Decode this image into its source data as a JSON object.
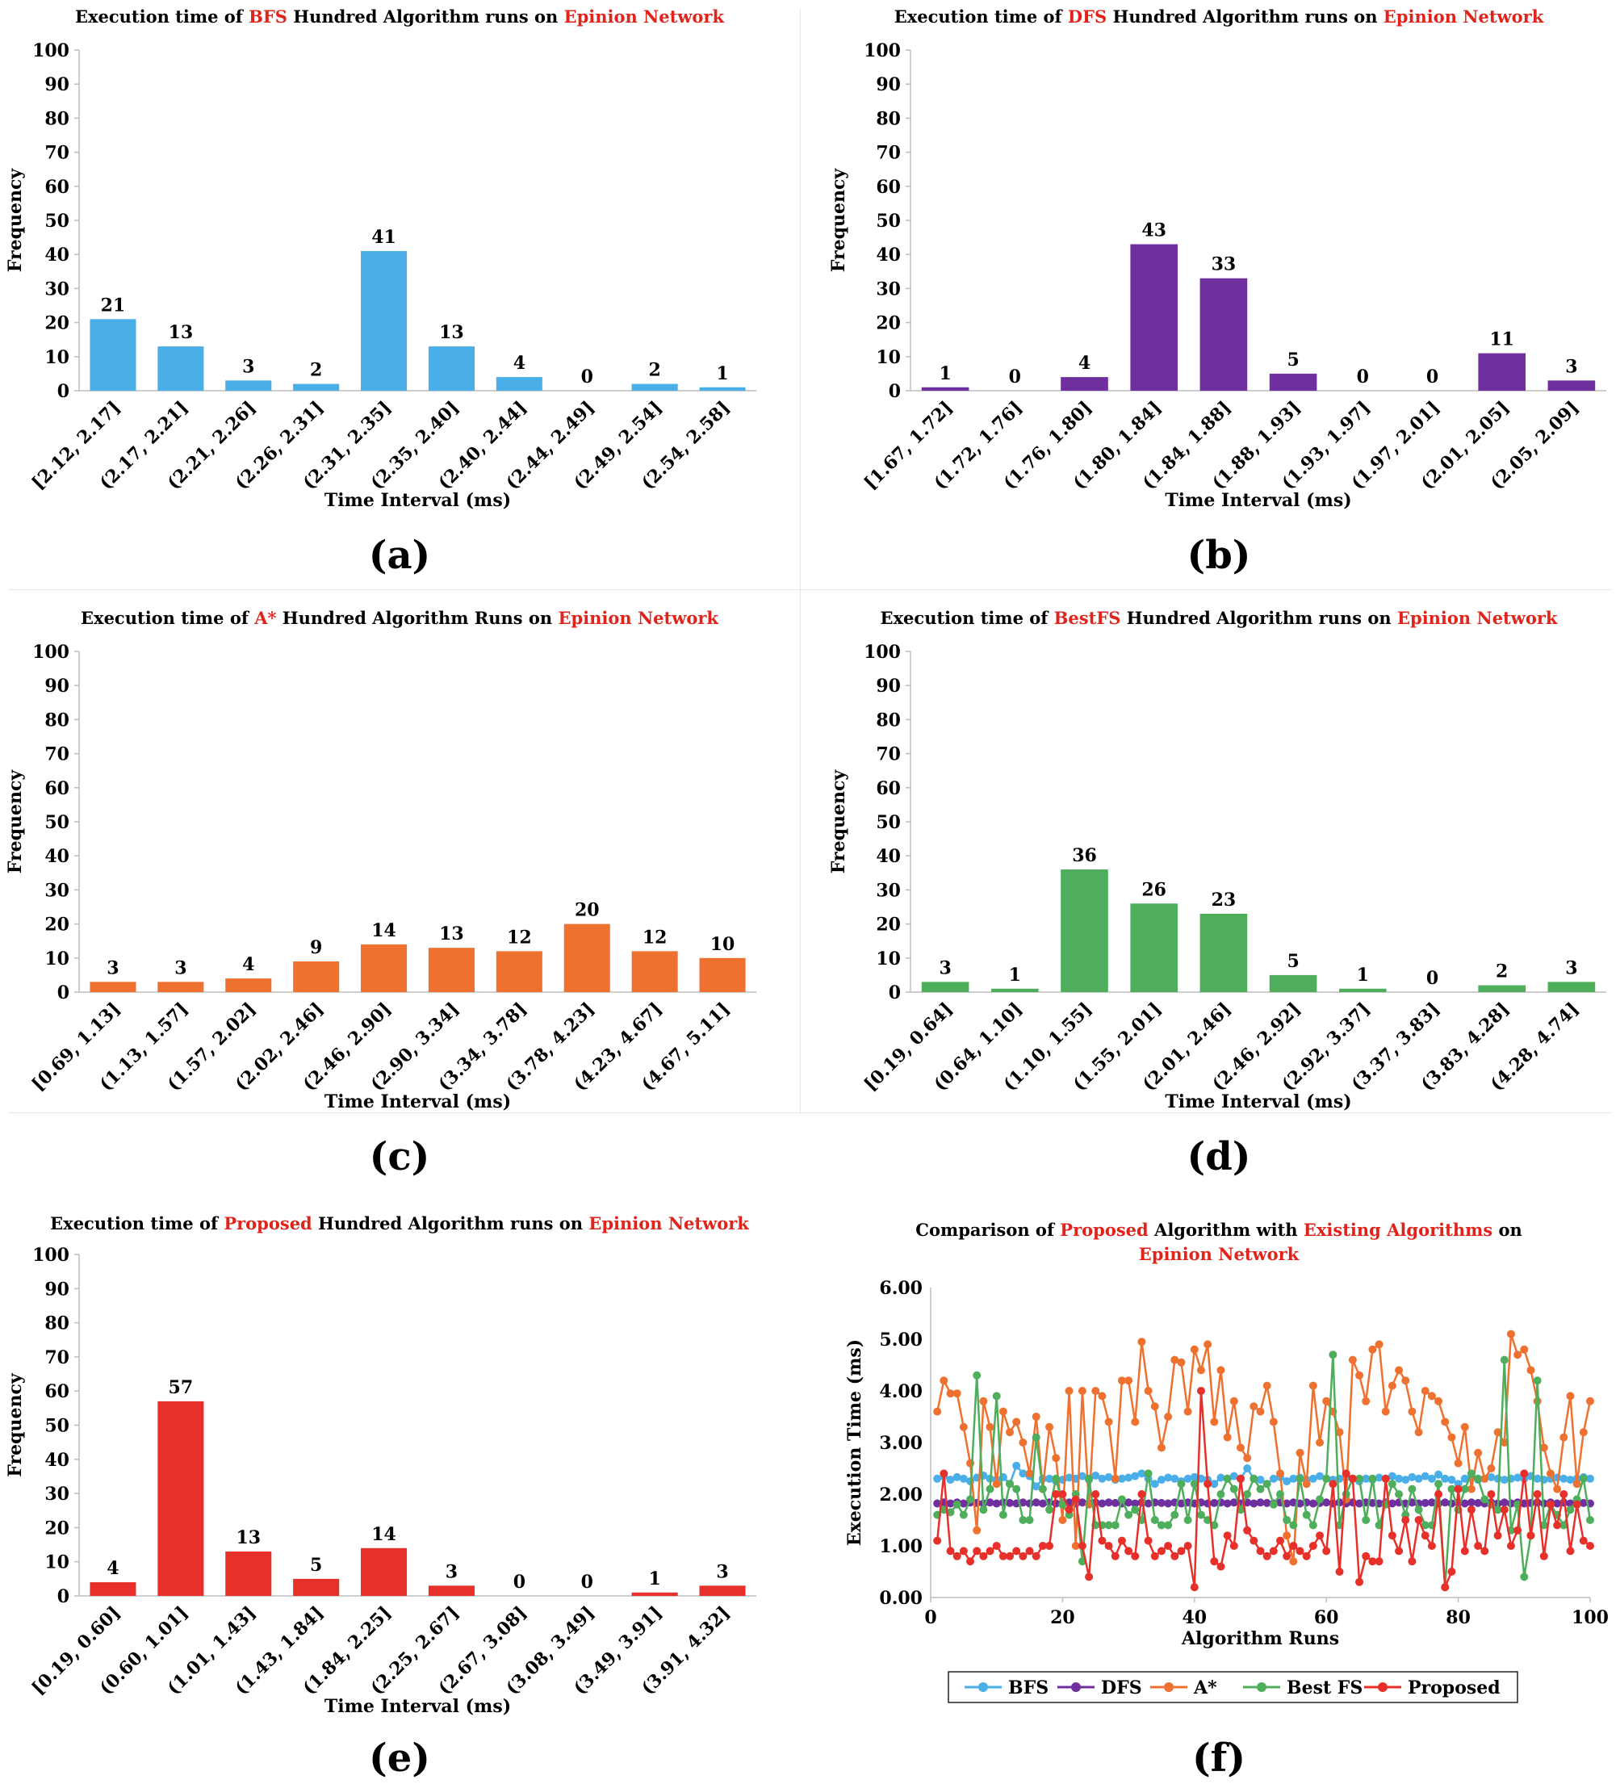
{
  "chart_data": [
    {
      "id": "a",
      "type": "bar",
      "panel_label": "(a)",
      "title": {
        "p1": "Execution time of ",
        "algo": "BFS",
        "p2": " Hundred Algorithm runs on ",
        "net": "Epinion Network"
      },
      "xlabel": "Time Interval (ms)",
      "ylabel": "Frequency",
      "ylim": [
        0,
        100
      ],
      "yticks": [
        0,
        10,
        20,
        30,
        40,
        50,
        60,
        70,
        80,
        90,
        100
      ],
      "color": "#4aaee8",
      "categories": [
        "[2.12, 2.17]",
        "(2.17, 2.21]",
        "(2.21, 2.26]",
        "(2.26, 2.31]",
        "(2.31, 2.35]",
        "(2.35, 2.40]",
        "(2.40, 2.44]",
        "(2.44, 2.49]",
        "(2.49, 2.54]",
        "(2.54, 2.58]"
      ],
      "values": [
        21,
        13,
        3,
        2,
        41,
        13,
        4,
        0,
        2,
        1
      ]
    },
    {
      "id": "b",
      "type": "bar",
      "panel_label": "(b)",
      "title": {
        "p1": "Execution time of ",
        "algo": "DFS",
        "p2": " Hundred Algorithm runs on ",
        "net": "Epinion Network"
      },
      "xlabel": "Time Interval (ms)",
      "ylabel": "Frequency",
      "ylim": [
        0,
        100
      ],
      "yticks": [
        0,
        10,
        20,
        30,
        40,
        50,
        60,
        70,
        80,
        90,
        100
      ],
      "color": "#6f2f9f",
      "categories": [
        "[1.67, 1.72]",
        "(1.72, 1.76]",
        "(1.76, 1.80]",
        "(1.80, 1.84]",
        "(1.84, 1.88]",
        "(1.88, 1.93]",
        "(1.93, 1.97]",
        "(1.97, 2.01]",
        "(2.01, 2.05]",
        "(2.05, 2.09]"
      ],
      "values": [
        1,
        0,
        4,
        43,
        33,
        5,
        0,
        0,
        11,
        3
      ]
    },
    {
      "id": "c",
      "type": "bar",
      "panel_label": "(c)",
      "title": {
        "p1": "Execution time of ",
        "algo": "A*",
        "p2": " Hundred Algorithm Runs on ",
        "net": "Epinion Network"
      },
      "xlabel": "Time Interval (ms)",
      "ylabel": "Frequency",
      "ylim": [
        0,
        100
      ],
      "yticks": [
        0,
        10,
        20,
        30,
        40,
        50,
        60,
        70,
        80,
        90,
        100
      ],
      "color": "#ef7130",
      "categories": [
        "[0.69, 1.13]",
        "(1.13, 1.57]",
        "(1.57, 2.02]",
        "(2.02, 2.46]",
        "(2.46, 2.90]",
        "(2.90, 3.34]",
        "(3.34, 3.78]",
        "(3.78, 4.23]",
        "(4.23, 4.67]",
        "(4.67, 5.11]"
      ],
      "values": [
        3,
        3,
        4,
        9,
        14,
        13,
        12,
        20,
        12,
        10
      ]
    },
    {
      "id": "d",
      "type": "bar",
      "panel_label": "(d)",
      "title": {
        "p1": "Execution time of ",
        "algo": "BestFS",
        "p2": " Hundred Algorithm runs on ",
        "net": "Epinion Network"
      },
      "xlabel": "Time Interval (ms)",
      "ylabel": "Frequency",
      "ylim": [
        0,
        100
      ],
      "yticks": [
        0,
        10,
        20,
        30,
        40,
        50,
        60,
        70,
        80,
        90,
        100
      ],
      "color": "#4fae5c",
      "categories": [
        "[0.19, 0.64]",
        "(0.64, 1.10]",
        "(1.10, 1.55]",
        "(1.55, 2.01]",
        "(2.01, 2.46]",
        "(2.46, 2.92]",
        "(2.92, 3.37]",
        "(3.37, 3.83]",
        "(3.83, 4.28]",
        "(4.28, 4.74]"
      ],
      "values": [
        3,
        1,
        36,
        26,
        23,
        5,
        1,
        0,
        2,
        3
      ]
    },
    {
      "id": "e",
      "type": "bar",
      "panel_label": "(e)",
      "title": {
        "p1": "Execution time of ",
        "algo": "Proposed",
        "p2": " Hundred Algorithm runs on ",
        "net": "Epinion Network"
      },
      "xlabel": "Time Interval (ms)",
      "ylabel": "Frequency",
      "ylim": [
        0,
        100
      ],
      "yticks": [
        0,
        10,
        20,
        30,
        40,
        50,
        60,
        70,
        80,
        90,
        100
      ],
      "color": "#e8302a",
      "categories": [
        "[0.19, 0.60]",
        "(0.60, 1.01]",
        "(1.01, 1.43]",
        "(1.43, 1.84]",
        "(1.84, 2.25]",
        "(2.25, 2.67]",
        "(2.67, 3.08]",
        "(3.08, 3.49]",
        "(3.49, 3.91]",
        "(3.91, 4.32]"
      ],
      "values": [
        4,
        57,
        13,
        5,
        14,
        3,
        0,
        0,
        1,
        3
      ]
    },
    {
      "id": "f",
      "type": "line",
      "panel_label": "(f)",
      "title": {
        "p1": "Comparison of ",
        "algo": "Proposed",
        "p2": " Algorithm with ",
        "extra": "Existing Algorithms",
        "p3": " on",
        "net": "Epinion Network"
      },
      "xlabel": "Algorithm Runs",
      "ylabel": "Execution Time (ms)",
      "xlim": [
        0,
        100
      ],
      "ylim": [
        0,
        6
      ],
      "xticks": [
        0,
        20,
        40,
        60,
        80,
        100
      ],
      "yticks": [
        "0.00",
        "1.00",
        "2.00",
        "3.00",
        "4.00",
        "5.00",
        "6.00"
      ],
      "legend_position": "bottom",
      "series": [
        {
          "name": "BFS",
          "color": "#4aaee8",
          "values": [
            2.3,
            2.35,
            2.28,
            2.33,
            2.3,
            2.25,
            2.32,
            2.36,
            2.3,
            2.28,
            2.33,
            2.2,
            2.55,
            2.4,
            2.35,
            2.15,
            2.3,
            2.3,
            2.25,
            2.28,
            2.32,
            2.3,
            2.35,
            2.28,
            2.36,
            2.3,
            2.33,
            2.28,
            2.3,
            2.32,
            2.35,
            2.4,
            2.3,
            2.2,
            2.28,
            2.32,
            2.3,
            2.25,
            2.3,
            2.33,
            2.3,
            2.28,
            2.2,
            2.32,
            2.3,
            2.35,
            2.3,
            2.5,
            2.3,
            2.28,
            2.2,
            2.3,
            2.33,
            2.25,
            2.3,
            2.32,
            2.28,
            2.3,
            2.35,
            2.3,
            2.28,
            2.3,
            2.33,
            2.3,
            2.25,
            2.3,
            2.28,
            2.32,
            2.3,
            2.35,
            2.3,
            2.28,
            2.33,
            2.3,
            2.35,
            2.3,
            2.38,
            2.3,
            2.28,
            2.2,
            2.3,
            2.32,
            2.28,
            2.3,
            2.33,
            2.3,
            2.28,
            2.3,
            2.32,
            2.3,
            2.35,
            2.3,
            2.28,
            2.3,
            2.32,
            2.3,
            2.28,
            2.3,
            2.33,
            2.3
          ]
        },
        {
          "name": "DFS",
          "color": "#6f2f9f",
          "values": [
            1.82,
            1.84,
            1.82,
            1.84,
            1.82,
            1.84,
            1.83,
            1.82,
            1.84,
            1.82,
            1.84,
            1.83,
            1.82,
            1.84,
            1.82,
            1.84,
            1.82,
            1.84,
            1.82,
            1.83,
            1.84,
            1.82,
            1.84,
            1.82,
            1.84,
            1.82,
            1.84,
            1.83,
            1.82,
            1.84,
            1.82,
            1.84,
            1.82,
            1.84,
            1.83,
            1.82,
            1.84,
            1.82,
            1.84,
            1.82,
            1.84,
            1.82,
            1.83,
            1.84,
            1.82,
            1.84,
            1.82,
            1.84,
            1.82,
            1.84,
            1.83,
            1.82,
            1.84,
            1.82,
            1.84,
            1.82,
            1.84,
            1.82,
            1.83,
            1.84,
            1.82,
            1.84,
            1.82,
            1.84,
            1.82,
            1.84,
            1.83,
            1.82,
            1.84,
            1.82,
            1.84,
            1.82,
            1.84,
            1.82,
            1.83,
            1.84,
            1.82,
            1.84,
            1.82,
            1.84,
            1.82,
            1.84,
            1.83,
            1.82,
            1.84,
            1.82,
            1.84,
            1.82,
            1.84,
            1.82,
            1.83,
            1.84,
            1.82,
            1.84,
            1.82,
            1.84,
            1.82,
            1.84,
            1.83,
            1.82
          ]
        },
        {
          "name": "A*",
          "color": "#ef7130",
          "values": [
            3.6,
            4.2,
            3.95,
            3.95,
            3.3,
            2.6,
            1.3,
            3.8,
            3.3,
            2.2,
            3.6,
            3.2,
            3.4,
            3.0,
            2.4,
            3.5,
            2.1,
            3.3,
            2.7,
            1.5,
            4.0,
            1.0,
            4.0,
            1.8,
            4.0,
            3.9,
            3.4,
            2.3,
            4.2,
            4.2,
            3.4,
            4.95,
            4.0,
            3.7,
            2.9,
            3.5,
            4.6,
            4.55,
            3.6,
            4.8,
            4.4,
            4.9,
            3.4,
            4.4,
            3.1,
            3.8,
            2.9,
            2.7,
            3.7,
            3.6,
            4.1,
            3.4,
            2.4,
            1.2,
            0.7,
            2.8,
            2.2,
            4.1,
            3.0,
            3.8,
            3.6,
            3.2,
            1.9,
            4.6,
            4.3,
            3.8,
            4.8,
            4.9,
            3.6,
            4.1,
            4.4,
            4.2,
            3.6,
            3.2,
            4.0,
            3.9,
            3.8,
            3.4,
            3.1,
            2.6,
            3.3,
            2.1,
            2.8,
            2.3,
            2.5,
            3.2,
            3.0,
            5.1,
            4.7,
            4.8,
            4.4,
            3.8,
            2.9,
            2.4,
            2.1,
            3.1,
            3.9,
            2.2,
            3.2,
            3.8
          ]
        },
        {
          "name": "Best FS",
          "color": "#4fae5c",
          "values": [
            1.6,
            1.7,
            1.65,
            1.8,
            1.6,
            1.9,
            4.3,
            1.7,
            2.1,
            3.9,
            1.6,
            2.2,
            2.1,
            1.5,
            1.5,
            3.1,
            2.1,
            1.7,
            2.3,
            1.8,
            1.6,
            2.0,
            0.7,
            2.3,
            1.4,
            1.4,
            1.4,
            1.4,
            1.9,
            1.6,
            1.7,
            1.5,
            2.4,
            1.5,
            1.4,
            1.4,
            1.6,
            2.2,
            1.5,
            2.2,
            1.6,
            1.5,
            1.4,
            2.0,
            2.3,
            2.1,
            1.7,
            2.0,
            2.3,
            2.1,
            2.2,
            1.8,
            2.0,
            1.5,
            1.4,
            2.3,
            1.6,
            1.4,
            1.9,
            2.3,
            4.7,
            1.4,
            2.0,
            2.3,
            2.3,
            1.5,
            2.3,
            1.4,
            1.8,
            2.2,
            2.0,
            1.6,
            2.1,
            1.7,
            1.4,
            1.4,
            2.2,
            0.2,
            2.1,
            1.7,
            2.1,
            2.4,
            2.3,
            1.9,
            1.8,
            1.7,
            4.6,
            1.3,
            1.8,
            0.4,
            1.2,
            4.2,
            1.4,
            1.8,
            1.6,
            1.4,
            1.7,
            1.9,
            2.3,
            1.5
          ]
        },
        {
          "name": "Proposed",
          "color": "#e8302a",
          "values": [
            1.1,
            2.4,
            0.9,
            0.8,
            0.9,
            0.7,
            0.9,
            0.8,
            0.9,
            1.0,
            0.8,
            0.8,
            0.9,
            0.8,
            0.9,
            0.8,
            1.0,
            1.0,
            2.0,
            2.0,
            1.7,
            1.9,
            1.0,
            0.4,
            2.0,
            1.1,
            1.0,
            0.8,
            1.1,
            0.9,
            0.8,
            2.0,
            1.1,
            0.8,
            0.9,
            1.0,
            0.8,
            0.9,
            1.0,
            0.2,
            4.0,
            2.2,
            0.7,
            0.6,
            1.2,
            1.0,
            2.3,
            1.3,
            1.1,
            0.9,
            0.8,
            0.9,
            1.1,
            0.8,
            1.0,
            0.9,
            0.8,
            1.0,
            1.2,
            0.9,
            2.2,
            0.5,
            2.4,
            2.3,
            0.3,
            0.8,
            0.7,
            0.7,
            2.3,
            1.2,
            0.9,
            1.5,
            0.7,
            1.5,
            1.2,
            1.0,
            2.0,
            0.2,
            0.5,
            2.1,
            0.9,
            1.7,
            1.0,
            0.9,
            2.0,
            1.2,
            1.7,
            1.0,
            1.3,
            2.4,
            1.2,
            2.0,
            0.8,
            1.8,
            1.4,
            2.0,
            0.9,
            1.8,
            1.1,
            1.0
          ]
        }
      ]
    }
  ]
}
